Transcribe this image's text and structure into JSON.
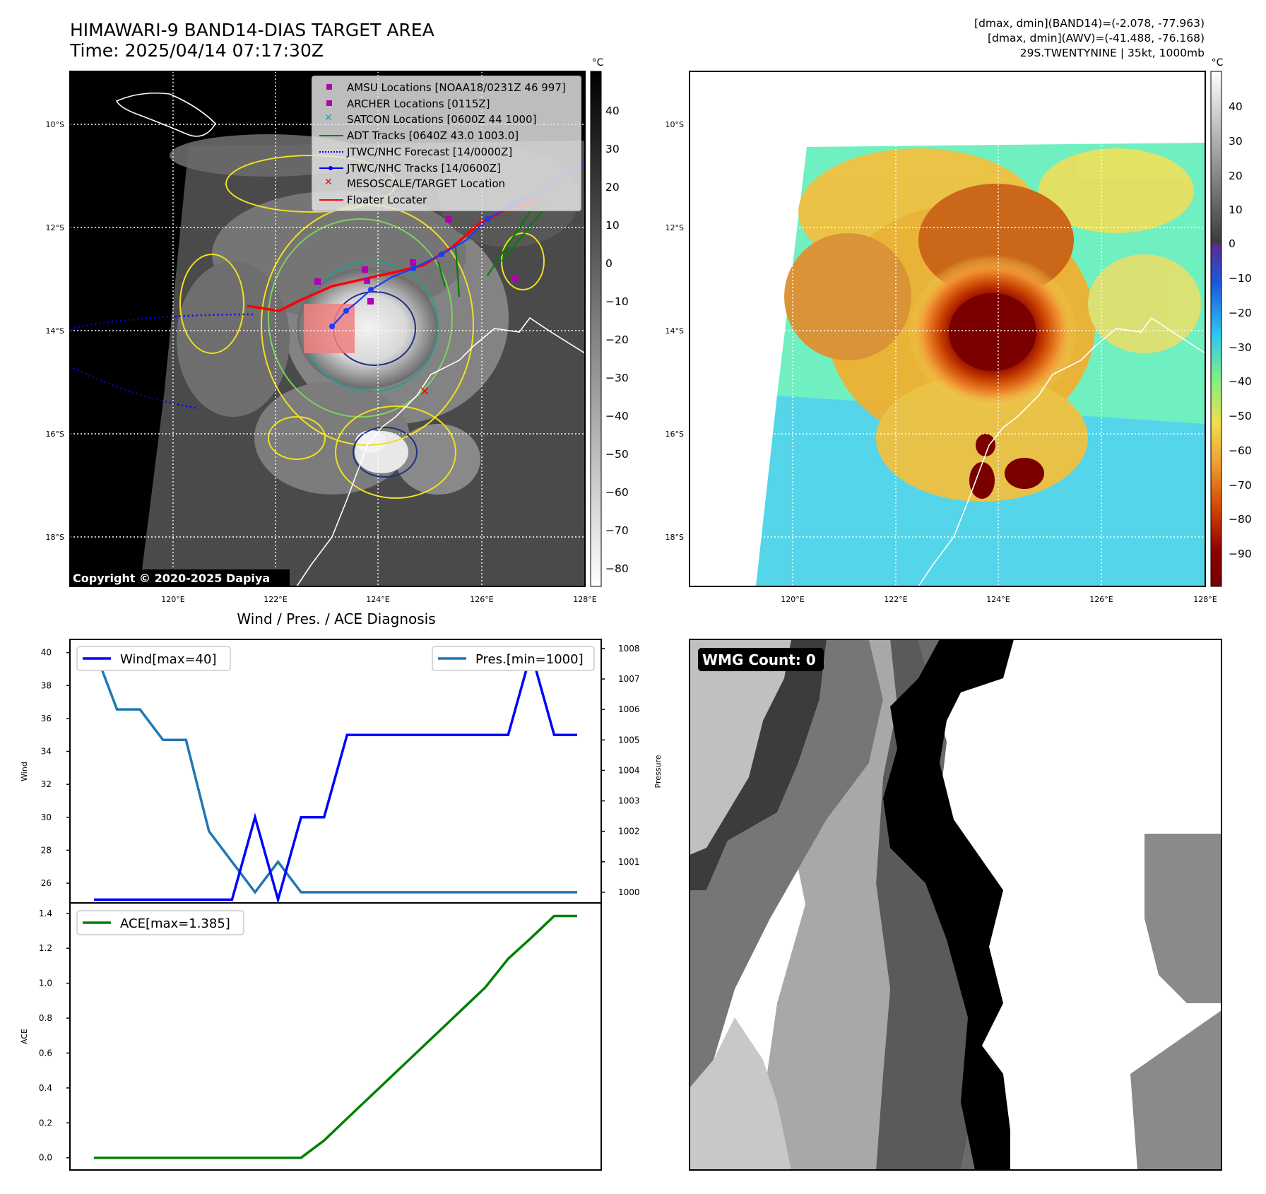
{
  "header": {
    "title": "HIMAWARI-9 BAND14-DIAS TARGET AREA",
    "time": "Time: 2025/04/14 07:17:30Z",
    "right_line1": "[dmax, dmin](BAND14)=(-2.078, -77.963)",
    "right_line2": "[dmax, dmin](AWV)=(-41.488, -76.168)",
    "right_line3": "29S.TWENTYNINE | 35kt, 1000mb"
  },
  "map": {
    "lat_ticks": [
      "10°S",
      "12°S",
      "14°S",
      "16°S",
      "18°S"
    ],
    "lon_ticks": [
      "120°E",
      "122°E",
      "124°E",
      "126°E",
      "128°E"
    ],
    "copyright": "Copyright © 2020-2025 Dapiya",
    "colorbar_unit": "°C",
    "left_colorbar_ticks": [
      "40",
      "30",
      "20",
      "10",
      "0",
      "−10",
      "−20",
      "−30",
      "−40",
      "−50",
      "−60",
      "−70",
      "−80"
    ],
    "right_colorbar_ticks": [
      "40",
      "30",
      "20",
      "10",
      "0",
      "−10",
      "−20",
      "−30",
      "−40",
      "−50",
      "−60",
      "−70",
      "−80",
      "−90"
    ],
    "legend": [
      {
        "label": "AMSU Locations [NOAA18/0231Z 46 997]",
        "symbol": "square",
        "color": "#b000b0"
      },
      {
        "label": "ARCHER Locations [0115Z]",
        "symbol": "square",
        "color": "#b000b0"
      },
      {
        "label": "SATCON Locations [0600Z 44 1000]",
        "symbol": "x",
        "color": "#00b0b0"
      },
      {
        "label": "ADT Tracks [0640Z 43.0 1003.0]",
        "symbol": "line",
        "color": "#008000"
      },
      {
        "label": "JTWC/NHC Forecast [14/0000Z]",
        "symbol": "dotted",
        "color": "#0000ff"
      },
      {
        "label": "JTWC/NHC Tracks [14/0600Z]",
        "symbol": "line-dot",
        "color": "#0000ff"
      },
      {
        "label": "MESOSCALE/TARGET Location",
        "symbol": "x",
        "color": "#ff0000"
      },
      {
        "label": "Floater Locater",
        "symbol": "line",
        "color": "#ff0000"
      }
    ]
  },
  "diag": {
    "title": "Wind / Pres. / ACE Diagnosis",
    "wind_legend": "Wind[max=40]",
    "pres_legend": "Pres.[min=1000]",
    "ace_legend": "ACE[max=1.385]",
    "wind_ylabel": "Wind",
    "pres_ylabel": "Pressure",
    "ace_ylabel": "ACE"
  },
  "wmg": {
    "label": "WMG Count: 0"
  },
  "colors": {
    "wind": "#0000ff",
    "pres": "#1f77b4",
    "ace": "#008000"
  },
  "chart_data": [
    {
      "type": "line",
      "title": "Wind / Pres. / ACE Diagnosis",
      "x": [
        0,
        1,
        2,
        3,
        4,
        5,
        6,
        7,
        8,
        9,
        10,
        11,
        12,
        13,
        14,
        15,
        16,
        17,
        18,
        19,
        20,
        21
      ],
      "series": [
        {
          "name": "Wind[max=40]",
          "axis": "left",
          "values": [
            25,
            25,
            25,
            25,
            25,
            25,
            25,
            30,
            25,
            30,
            30,
            35,
            35,
            35,
            35,
            35,
            35,
            35,
            35,
            40,
            35,
            35
          ]
        },
        {
          "name": "Pres.[min=1000]",
          "axis": "right",
          "values": [
            1008,
            1006,
            1006,
            1005,
            1005,
            1002,
            1001,
            1000,
            1001,
            1000,
            1000,
            1000,
            1000,
            1000,
            1000,
            1000,
            1000,
            1000,
            1000,
            1000,
            1000,
            1000
          ]
        }
      ],
      "ylabel": "Wind",
      "ylabel_right": "Pressure",
      "ylim": [
        24.8,
        40.8
      ],
      "ylim_right": [
        999.65,
        1008.3
      ],
      "yticks": [
        26,
        28,
        30,
        32,
        34,
        36,
        38,
        40
      ],
      "yticks_right": [
        1000,
        1001,
        1002,
        1003,
        1004,
        1005,
        1006,
        1007,
        1008
      ]
    },
    {
      "type": "line",
      "x": [
        0,
        1,
        2,
        3,
        4,
        5,
        6,
        7,
        8,
        9,
        10,
        11,
        12,
        13,
        14,
        15,
        16,
        17,
        18,
        19,
        20,
        21
      ],
      "series": [
        {
          "name": "ACE[max=1.385]",
          "values": [
            0,
            0,
            0,
            0,
            0,
            0,
            0,
            0,
            0,
            0,
            0.099,
            0.225,
            0.35,
            0.475,
            0.6,
            0.725,
            0.85,
            0.975,
            1.14,
            1.26,
            1.385,
            1.385
          ]
        }
      ],
      "ylabel": "ACE",
      "ylim": [
        -0.07,
        1.46
      ],
      "yticks": [
        0.0,
        0.2,
        0.4,
        0.6,
        0.8,
        1.0,
        1.2,
        1.4
      ],
      "ytick_labels": [
        "0.0",
        "0.2",
        "0.4",
        "0.6",
        "0.8",
        "1.0",
        "1.2",
        "1.4"
      ]
    }
  ]
}
